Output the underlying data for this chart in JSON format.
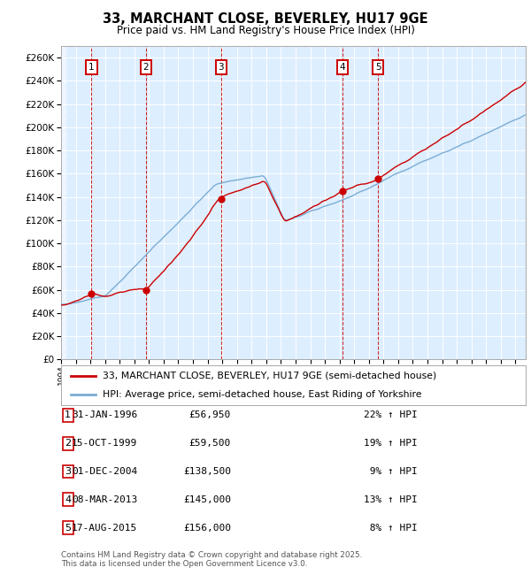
{
  "title": "33, MARCHANT CLOSE, BEVERLEY, HU17 9GE",
  "subtitle": "Price paid vs. HM Land Registry's House Price Index (HPI)",
  "legend_line1": "33, MARCHANT CLOSE, BEVERLEY, HU17 9GE (semi-detached house)",
  "legend_line2": "HPI: Average price, semi-detached house, East Riding of Yorkshire",
  "footer": "Contains HM Land Registry data © Crown copyright and database right 2025.\nThis data is licensed under the Open Government Licence v3.0.",
  "transactions": [
    {
      "num": 1,
      "date": "31-JAN-1996",
      "price": 56950,
      "hpi_pct": "22% ↑ HPI",
      "x_year": 1996.08
    },
    {
      "num": 2,
      "date": "15-OCT-1999",
      "price": 59500,
      "hpi_pct": "19% ↑ HPI",
      "x_year": 1999.79
    },
    {
      "num": 3,
      "date": "01-DEC-2004",
      "price": 138500,
      "hpi_pct": "9% ↑ HPI",
      "x_year": 2004.92
    },
    {
      "num": 4,
      "date": "08-MAR-2013",
      "price": 145000,
      "hpi_pct": "13% ↑ HPI",
      "x_year": 2013.19
    },
    {
      "num": 5,
      "date": "17-AUG-2015",
      "price": 156000,
      "hpi_pct": "8% ↑ HPI",
      "x_year": 2015.63
    }
  ],
  "table_rows": [
    [
      "1",
      "31-JAN-1996",
      "£56,950",
      "22% ↑ HPI"
    ],
    [
      "2",
      "15-OCT-1999",
      "£59,500",
      "19% ↑ HPI"
    ],
    [
      "3",
      "01-DEC-2004",
      "£138,500",
      " 9% ↑ HPI"
    ],
    [
      "4",
      "08-MAR-2013",
      "£145,000",
      "13% ↑ HPI"
    ],
    [
      "5",
      "17-AUG-2015",
      "£156,000",
      " 8% ↑ HPI"
    ]
  ],
  "red_line_color": "#cc0000",
  "blue_line_color": "#7aadd4",
  "plot_bg_color": "#ddeeff",
  "grid_color": "#ffffff",
  "vline_color": "#cc0000",
  "label_box_color": "#cc0000",
  "ylim": [
    0,
    270000
  ],
  "xlim_start": 1994.0,
  "xlim_end": 2025.7,
  "ytick_step": 20000
}
